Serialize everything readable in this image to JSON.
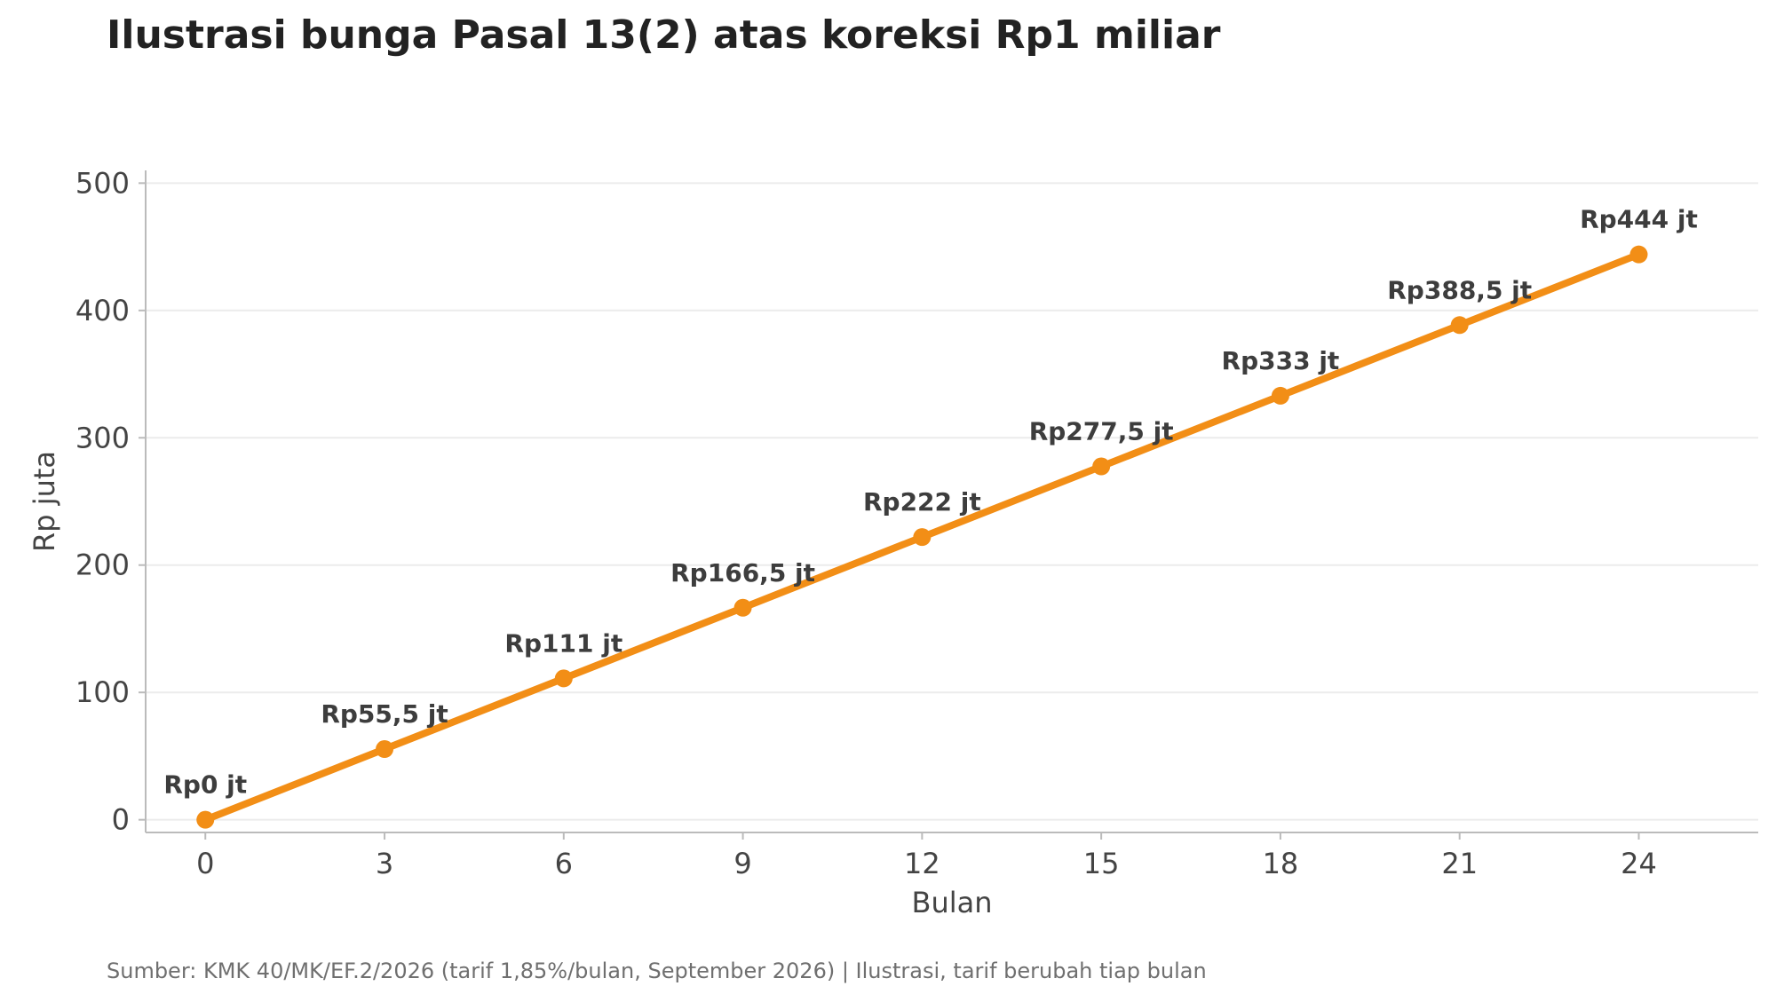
{
  "title": "Ilustrasi bunga Pasal 13(2) atas koreksi Rp1 miliar",
  "source_note": "Sumber: KMK 40/MK/EF.2/2026 (tarif 1,85%/bulan, September 2026)  |  Ilustrasi, tarif berubah tiap bulan",
  "chart_data": {
    "type": "line",
    "x": [
      0,
      3,
      6,
      9,
      12,
      15,
      18,
      21,
      24
    ],
    "series": [
      {
        "values": [
          0,
          55.5,
          111,
          166.5,
          222,
          277.5,
          333,
          388.5,
          444
        ],
        "data_labels": [
          "Rp0 jt",
          "Rp55,5 jt",
          "Rp111 jt",
          "Rp166,5 jt",
          "Rp222 jt",
          "Rp277,5 jt",
          "Rp333 jt",
          "Rp388,5 jt",
          "Rp444 jt"
        ],
        "color": "#f28e16"
      }
    ],
    "xlabel": "Bulan",
    "ylabel": "Rp juta",
    "xlim": [
      -1,
      26
    ],
    "ylim": [
      -10,
      510
    ],
    "xticks": [
      0,
      3,
      6,
      9,
      12,
      15,
      18,
      21,
      24
    ],
    "yticks": [
      0,
      100,
      200,
      300,
      400,
      500
    ],
    "grid": "horizontal",
    "colors": {
      "line": "#f28e16",
      "grid": "#ececec",
      "axis": "#bbbbbb",
      "text": "#444444"
    }
  }
}
